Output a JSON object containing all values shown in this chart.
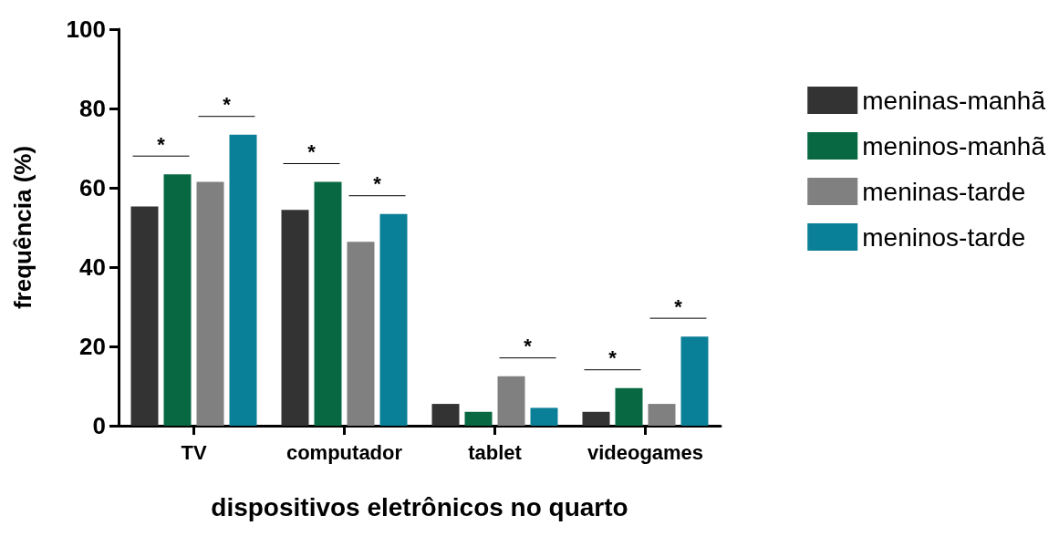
{
  "chart_data": {
    "type": "bar",
    "xlabel": "dispositivos eletrônicos no quarto",
    "ylabel": "frequência (%)",
    "categories": [
      "TV",
      "computador",
      "tablet",
      "videogames"
    ],
    "series": [
      {
        "name": "meninas-manhã",
        "color": "#333333",
        "values": [
          55.3,
          54.4,
          5.5,
          3.5
        ]
      },
      {
        "name": "meninos-manhã",
        "color": "#086842",
        "values": [
          63.4,
          61.5,
          3.5,
          9.5
        ]
      },
      {
        "name": "meninas-tarde",
        "color": "#808080",
        "values": [
          61.5,
          46.4,
          12.5,
          5.5
        ]
      },
      {
        "name": "meninos-tarde",
        "color": "#0a7f98",
        "values": [
          73.4,
          53.4,
          4.5,
          22.5
        ]
      }
    ],
    "ylim": [
      0,
      100
    ],
    "yticks": [
      0,
      20,
      40,
      60,
      80,
      100
    ],
    "grid": false,
    "legend": "right",
    "annotations": [
      "*",
      "*",
      "*",
      "*",
      "*",
      "*",
      "*"
    ]
  }
}
